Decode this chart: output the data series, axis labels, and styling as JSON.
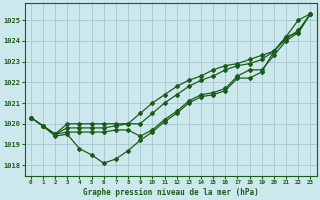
{
  "title": "Graphe pression niveau de la mer (hPa)",
  "bg_color": "#cce8ec",
  "grid_color": "#aaccd4",
  "line_color": "#1a5c1a",
  "xlim": [
    -0.5,
    23.5
  ],
  "ylim": [
    1017.5,
    1025.8
  ],
  "yticks": [
    1018,
    1019,
    1020,
    1021,
    1022,
    1023,
    1024,
    1025
  ],
  "xticks": [
    0,
    1,
    2,
    3,
    4,
    5,
    6,
    7,
    8,
    9,
    10,
    11,
    12,
    13,
    14,
    15,
    16,
    17,
    18,
    19,
    20,
    21,
    22,
    23
  ],
  "series": [
    [
      1020.3,
      1019.9,
      1019.4,
      1019.5,
      1018.8,
      1018.5,
      1018.1,
      1018.3,
      1018.7,
      1019.2,
      1019.6,
      1020.1,
      1020.5,
      1021.0,
      1021.3,
      1021.4,
      1021.6,
      1022.2,
      1022.2,
      1022.5,
      1023.5,
      1024.2,
      1025.0,
      1025.3
    ],
    [
      1020.3,
      1019.9,
      1019.5,
      1020.0,
      1020.0,
      1020.0,
      1020.0,
      1020.0,
      1020.0,
      1020.0,
      1020.5,
      1021.0,
      1021.4,
      1021.8,
      1022.1,
      1022.3,
      1022.6,
      1022.8,
      1022.9,
      1023.1,
      1023.5,
      1024.1,
      1024.5,
      1025.3
    ],
    [
      1020.3,
      1019.9,
      1019.5,
      1019.8,
      1019.8,
      1019.8,
      1019.8,
      1019.9,
      1020.0,
      1020.5,
      1021.0,
      1021.4,
      1021.8,
      1022.1,
      1022.3,
      1022.6,
      1022.8,
      1022.9,
      1023.1,
      1023.3,
      1023.5,
      1024.2,
      1024.4,
      1025.3
    ],
    [
      1020.3,
      1019.9,
      1019.5,
      1019.6,
      1019.6,
      1019.6,
      1019.6,
      1019.7,
      1019.7,
      1019.4,
      1019.7,
      1020.2,
      1020.6,
      1021.1,
      1021.4,
      1021.5,
      1021.7,
      1022.3,
      1022.6,
      1022.6,
      1023.3,
      1024.0,
      1024.4,
      1025.3
    ]
  ]
}
